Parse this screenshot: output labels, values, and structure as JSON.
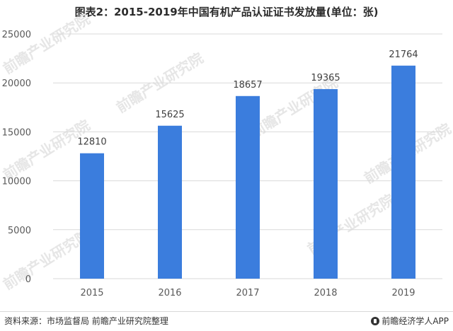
{
  "title": "图表2：2015-2019年中国有机产品认证证书发放量(单位：张)",
  "footer": {
    "source": "资料来源：市场监督局 前瞻产业研究院整理",
    "brand": "前瞻经济学人APP"
  },
  "watermark": "前瞻产业研究院",
  "colors": {
    "bar": "#3b7ddd",
    "grid": "#d9d9d9",
    "axis_text": "#595959"
  },
  "chart_data": {
    "type": "bar",
    "title": "图表2：2015-2019年中国有机产品认证证书发放量(单位：张)",
    "categories": [
      "2015",
      "2016",
      "2017",
      "2018",
      "2019"
    ],
    "values": [
      12810,
      15625,
      18657,
      19365,
      21764
    ],
    "ylim": [
      0,
      25000
    ],
    "yticks": [
      0,
      5000,
      10000,
      15000,
      20000,
      25000
    ],
    "grid": true,
    "data_labels": true
  }
}
